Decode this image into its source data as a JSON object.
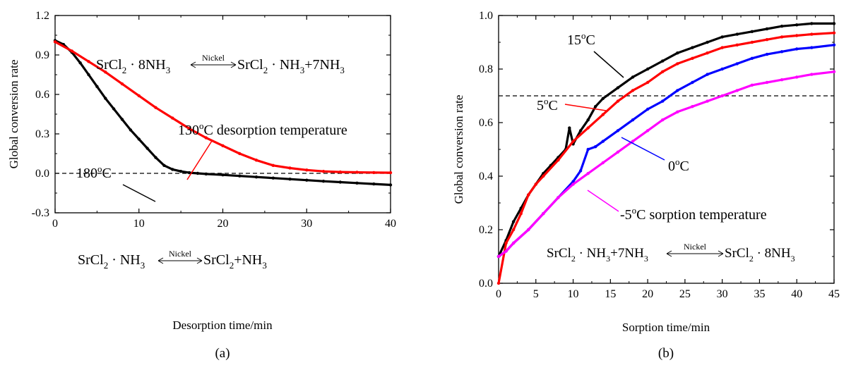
{
  "panels": {
    "a": {
      "caption": "(a)"
    },
    "b": {
      "caption": "(b)"
    }
  },
  "chart_data": [
    {
      "type": "line",
      "xlabel": "Desorption time/min",
      "ylabel": "Global conversion rate",
      "xlim": [
        0,
        40
      ],
      "ylim": [
        -0.3,
        1.2
      ],
      "xticks": [
        "0",
        "10",
        "20",
        "30",
        "40"
      ],
      "yticks": [
        "-0.3",
        "0.0",
        "0.3",
        "0.6",
        "0.9",
        "1.2"
      ],
      "reference_line": {
        "y": 0.0,
        "style": "dashed"
      },
      "series": [
        {
          "name": "180°C",
          "color": "#000000",
          "x": [
            0,
            1,
            2,
            3,
            4,
            5,
            6,
            7,
            8,
            9,
            10,
            11,
            12,
            13,
            14,
            15,
            16,
            17,
            18,
            20,
            22,
            24,
            26,
            28,
            30,
            32,
            34,
            36,
            38,
            40
          ],
          "y": [
            1.01,
            0.98,
            0.92,
            0.84,
            0.75,
            0.66,
            0.57,
            0.49,
            0.41,
            0.33,
            0.26,
            0.19,
            0.12,
            0.06,
            0.03,
            0.015,
            0.005,
            0.0,
            -0.005,
            -0.012,
            -0.02,
            -0.028,
            -0.036,
            -0.044,
            -0.052,
            -0.06,
            -0.067,
            -0.074,
            -0.081,
            -0.088
          ]
        },
        {
          "name": "130°C desorption temperature",
          "color": "#ff0000",
          "x": [
            0,
            2,
            4,
            6,
            8,
            10,
            12,
            14,
            16,
            18,
            20,
            22,
            24,
            26,
            28,
            30,
            32,
            34,
            36,
            38,
            40
          ],
          "y": [
            1.0,
            0.93,
            0.85,
            0.77,
            0.68,
            0.59,
            0.5,
            0.42,
            0.34,
            0.27,
            0.21,
            0.15,
            0.1,
            0.06,
            0.04,
            0.025,
            0.015,
            0.01,
            0.008,
            0.006,
            0.005
          ]
        }
      ],
      "annotations": [
        {
          "parts": [
            "SrCl",
            "2",
            " · 8NH",
            "3",
            "SrCl",
            "2",
            " · NH",
            "3",
            "+7NH",
            "3"
          ],
          "arrow_label": "Nickel"
        },
        {
          "parts": [
            "SrCl",
            "2",
            " · NH",
            "3",
            "SrCl",
            "2",
            "+NH",
            "3"
          ],
          "arrow_label": "Nickel"
        },
        {
          "num": "130",
          "sup": "o",
          "rest": "C desorption temperature"
        },
        {
          "num": "180",
          "sup": "o",
          "rest": "C"
        }
      ]
    },
    {
      "type": "line",
      "xlabel": "Sorption time/min",
      "ylabel": "Global conversion rate",
      "xlim": [
        0,
        45
      ],
      "ylim": [
        0.0,
        1.0
      ],
      "xticks": [
        "0",
        "5",
        "10",
        "15",
        "20",
        "25",
        "30",
        "35",
        "40",
        "45"
      ],
      "yticks": [
        "0.0",
        "0.2",
        "0.4",
        "0.6",
        "0.8",
        "1.0"
      ],
      "reference_line": {
        "y": 0.7,
        "style": "dashed"
      },
      "series": [
        {
          "name": "15°C",
          "color": "#000000",
          "x": [
            0,
            1,
            2,
            3,
            4,
            5,
            6,
            7,
            8,
            9,
            9.5,
            10,
            11,
            12,
            13,
            14,
            16,
            18,
            20,
            22,
            24,
            26,
            28,
            30,
            32,
            34,
            36,
            38,
            40,
            42,
            45
          ],
          "y": [
            0.1,
            0.16,
            0.23,
            0.28,
            0.33,
            0.37,
            0.41,
            0.44,
            0.47,
            0.5,
            0.58,
            0.52,
            0.57,
            0.61,
            0.66,
            0.69,
            0.73,
            0.77,
            0.8,
            0.83,
            0.86,
            0.88,
            0.9,
            0.92,
            0.93,
            0.94,
            0.95,
            0.96,
            0.965,
            0.97,
            0.97
          ]
        },
        {
          "name": "5°C",
          "color": "#ff0000",
          "x": [
            0,
            1,
            2,
            3,
            4,
            5,
            6,
            8,
            10,
            12,
            14,
            16,
            18,
            20,
            22,
            24,
            26,
            28,
            30,
            32,
            34,
            36,
            38,
            40,
            42,
            45
          ],
          "y": [
            0.0,
            0.15,
            0.2,
            0.26,
            0.33,
            0.37,
            0.4,
            0.46,
            0.53,
            0.58,
            0.63,
            0.68,
            0.72,
            0.75,
            0.79,
            0.82,
            0.84,
            0.86,
            0.88,
            0.89,
            0.9,
            0.91,
            0.92,
            0.925,
            0.93,
            0.935
          ]
        },
        {
          "name": "0°C",
          "color": "#0000ff",
          "x": [
            0,
            1,
            2,
            4,
            6,
            8,
            10,
            11,
            12,
            13,
            14,
            16,
            18,
            20,
            22,
            24,
            26,
            28,
            30,
            32,
            34,
            36,
            38,
            40,
            42,
            45
          ],
          "y": [
            0.1,
            0.12,
            0.15,
            0.2,
            0.26,
            0.32,
            0.38,
            0.42,
            0.5,
            0.51,
            0.53,
            0.57,
            0.61,
            0.65,
            0.68,
            0.72,
            0.75,
            0.78,
            0.8,
            0.82,
            0.84,
            0.855,
            0.865,
            0.875,
            0.88,
            0.89
          ]
        },
        {
          "name": "-5°C sorption temperature",
          "color": "#ff00ff",
          "x": [
            0,
            1,
            2,
            4,
            6,
            8,
            10,
            12,
            14,
            16,
            18,
            20,
            22,
            24,
            26,
            28,
            30,
            32,
            34,
            36,
            38,
            40,
            42,
            45
          ],
          "y": [
            0.1,
            0.12,
            0.15,
            0.2,
            0.26,
            0.32,
            0.37,
            0.41,
            0.45,
            0.49,
            0.53,
            0.57,
            0.61,
            0.64,
            0.66,
            0.68,
            0.7,
            0.72,
            0.74,
            0.75,
            0.76,
            0.77,
            0.78,
            0.79
          ]
        }
      ],
      "annotations": [
        {
          "parts": [
            "SrCl",
            "2",
            " · NH",
            "3",
            "+7NH",
            "3",
            "SrCl",
            "2",
            " · 8NH",
            "3"
          ],
          "arrow_label": "Nickel"
        },
        {
          "num": "15",
          "sup": "o",
          "rest": "C"
        },
        {
          "num": "5",
          "sup": "o",
          "rest": "C"
        },
        {
          "num": "0",
          "sup": "o",
          "rest": "C"
        },
        {
          "num": "-5",
          "sup": "o",
          "rest": "C sorption temperature"
        }
      ]
    }
  ]
}
